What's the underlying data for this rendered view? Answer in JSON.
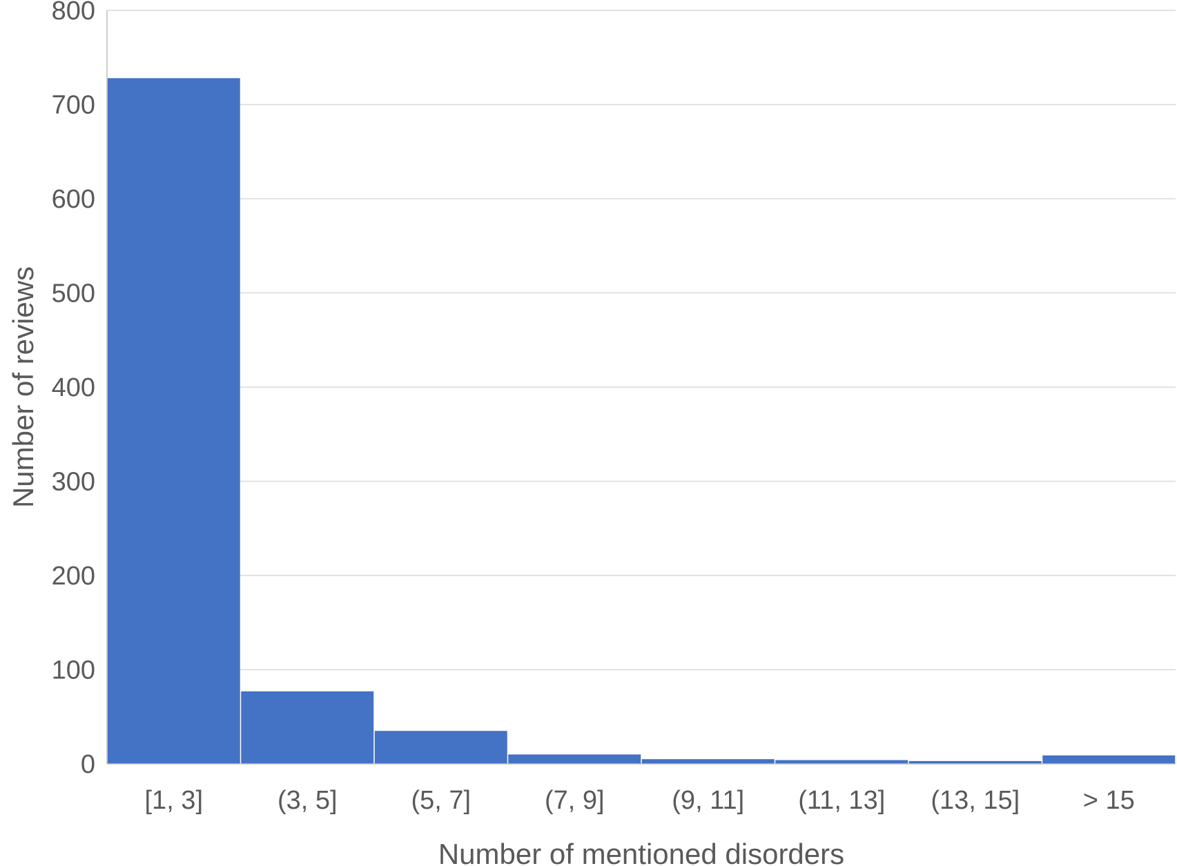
{
  "chart_data": {
    "type": "bar",
    "title": "",
    "xlabel": "Number of mentioned disorders",
    "ylabel": "Number of reviews",
    "categories": [
      "[1, 3]",
      "(3, 5]",
      "(5, 7]",
      "(7, 9]",
      "(9, 11]",
      "(11, 13]",
      "(13, 15]",
      "> 15"
    ],
    "values": [
      728,
      77,
      35,
      10,
      5,
      4,
      3,
      9
    ],
    "ylim": [
      0,
      800
    ],
    "yticks": [
      0,
      100,
      200,
      300,
      400,
      500,
      600,
      700,
      800
    ],
    "grid": true,
    "legend": "none",
    "bar_color": "#4472c4",
    "grid_color": "#d9d9d9",
    "text_color": "#595959"
  }
}
